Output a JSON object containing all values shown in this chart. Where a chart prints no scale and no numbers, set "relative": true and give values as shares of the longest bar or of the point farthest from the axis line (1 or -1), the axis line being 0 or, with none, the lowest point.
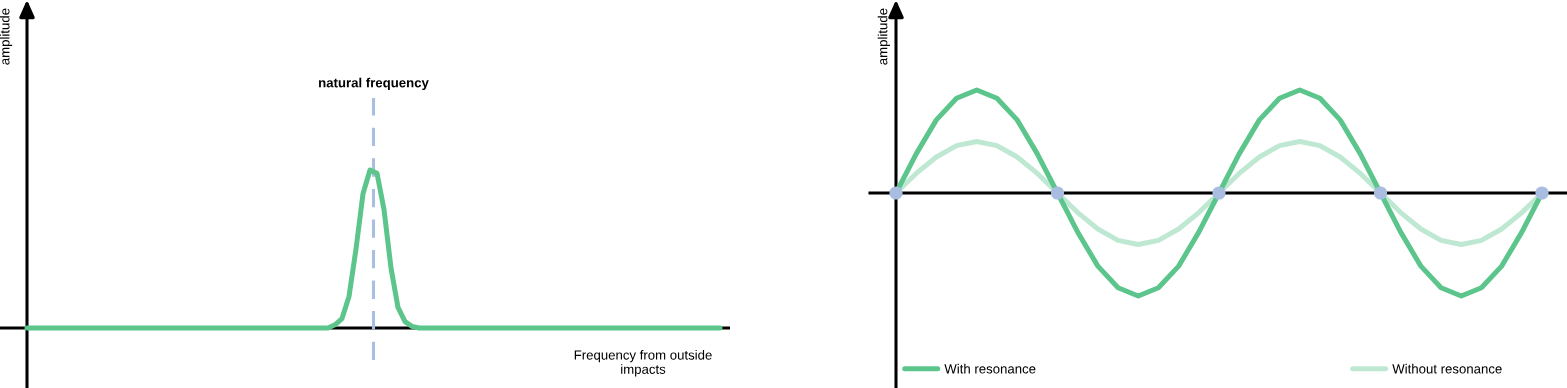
{
  "chart_data": [
    {
      "type": "line",
      "relative": true,
      "ylabel": "amplitude",
      "xlabel": "Frequency from outside impacts",
      "categories": [
        null,
        null,
        null,
        null,
        null,
        null,
        null,
        null,
        null,
        null,
        null,
        null,
        null,
        null,
        null,
        null,
        null,
        null,
        null,
        null,
        null,
        null,
        null,
        null,
        null,
        null,
        null,
        null,
        null,
        null,
        null,
        null,
        null,
        null,
        null,
        null,
        null,
        null,
        null,
        null,
        null,
        null,
        null,
        null,
        null,
        null,
        null,
        null,
        null,
        null,
        null,
        null,
        null,
        null,
        null,
        null,
        null,
        null,
        null,
        null,
        null,
        null,
        null,
        null,
        null,
        null,
        null,
        null,
        null,
        null,
        null,
        null,
        null,
        null,
        null,
        null,
        null,
        null,
        null,
        null,
        null,
        null,
        null,
        null,
        null,
        null,
        null,
        null,
        null,
        null,
        null,
        null,
        null,
        null,
        null,
        null,
        null,
        null,
        null,
        null
      ],
      "series": [
        {
          "color": "#5bc58b",
          "values": [
            0,
            0,
            0,
            0,
            0,
            0,
            0,
            0,
            0,
            0,
            0,
            0,
            0,
            0,
            0,
            0,
            0,
            0,
            0,
            0,
            0,
            0,
            0,
            0,
            0,
            0,
            0,
            0,
            0,
            0,
            0,
            0,
            0,
            0,
            0,
            0,
            0,
            0,
            0,
            0,
            0,
            0,
            0,
            0,
            0.02,
            0.06,
            0.2,
            0.5,
            0.85,
            1,
            0.98,
            0.75,
            0.38,
            0.13,
            0.04,
            0.01,
            0,
            0,
            0,
            0,
            0,
            0,
            0,
            0,
            0,
            0,
            0,
            0,
            0,
            0,
            0,
            0,
            0,
            0,
            0,
            0,
            0,
            0,
            0,
            0,
            0,
            0,
            0,
            0,
            0,
            0,
            0,
            0,
            0,
            0,
            0,
            0,
            0,
            0,
            0,
            0,
            0,
            0,
            0,
            0
          ]
        }
      ],
      "annotations": [
        "natural frequency"
      ]
    },
    {
      "type": "line",
      "relative": true,
      "ylabel": "amplitude",
      "legend": "bottom",
      "categories": [
        null,
        null,
        null,
        null,
        null,
        null,
        null,
        null,
        null,
        null,
        null,
        null,
        null,
        null,
        null,
        null,
        null,
        null,
        null,
        null,
        null,
        null,
        null,
        null,
        null,
        null,
        null,
        null,
        null,
        null,
        null,
        null,
        null
      ],
      "series": [
        {
          "name": "Without resonance",
          "color": "#bfe8d3",
          "values": [
            0,
            0.19,
            0.35,
            0.46,
            0.5,
            0.46,
            0.35,
            0.19,
            0,
            -0.19,
            -0.35,
            -0.46,
            -0.5,
            -0.46,
            -0.35,
            -0.19,
            0,
            0.19,
            0.35,
            0.46,
            0.5,
            0.46,
            0.35,
            0.19,
            0,
            -0.19,
            -0.35,
            -0.46,
            -0.5,
            -0.46,
            -0.35,
            -0.19,
            0
          ]
        },
        {
          "name": "With resonance",
          "color": "#5bc58b",
          "values": [
            0,
            0.38,
            0.71,
            0.92,
            1,
            0.92,
            0.71,
            0.38,
            0,
            -0.38,
            -0.71,
            -0.92,
            -1,
            -0.92,
            -0.71,
            -0.38,
            0,
            0.38,
            0.71,
            0.92,
            1,
            0.92,
            0.71,
            0.38,
            0,
            -0.38,
            -0.71,
            -0.92,
            -1,
            -0.92,
            -0.71,
            -0.38,
            0
          ]
        }
      ]
    }
  ]
}
